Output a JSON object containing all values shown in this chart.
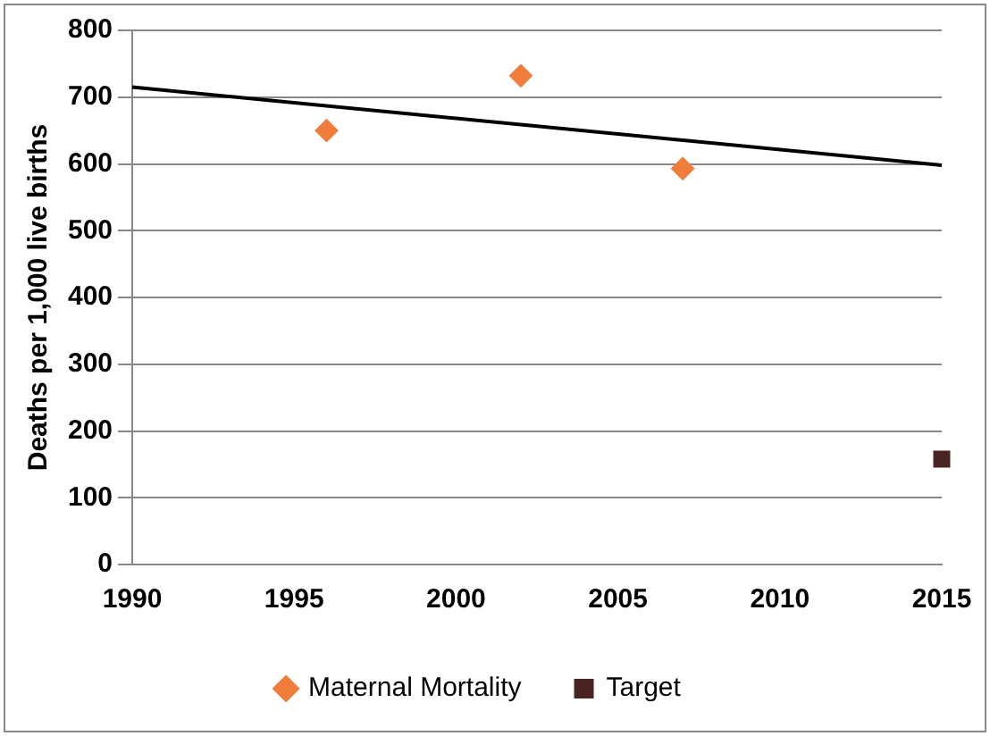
{
  "chart_data": {
    "type": "scatter",
    "ylabel": "Deaths per 1,000 live births",
    "xlim": [
      1990,
      2015
    ],
    "xticks": [
      1990,
      1995,
      2000,
      2005,
      2010,
      2015
    ],
    "ylim": [
      0,
      800
    ],
    "yticks": [
      0,
      100,
      200,
      300,
      400,
      500,
      600,
      700,
      800
    ],
    "grid": "y",
    "legend": "bottom",
    "series": [
      {
        "name": "Maternal Mortality",
        "type": "scatter",
        "marker": "diamond",
        "color": "#f07d3a",
        "x": [
          1996,
          2002,
          2007
        ],
        "values": [
          650,
          732,
          593
        ]
      },
      {
        "name": "Target",
        "type": "scatter",
        "marker": "square",
        "color": "#4a2323",
        "x": [
          2015
        ],
        "values": [
          158
        ]
      },
      {
        "type": "line",
        "marker": "none",
        "color": "#000000",
        "x": [
          1990,
          2015
        ],
        "values": [
          715,
          598
        ]
      }
    ]
  }
}
